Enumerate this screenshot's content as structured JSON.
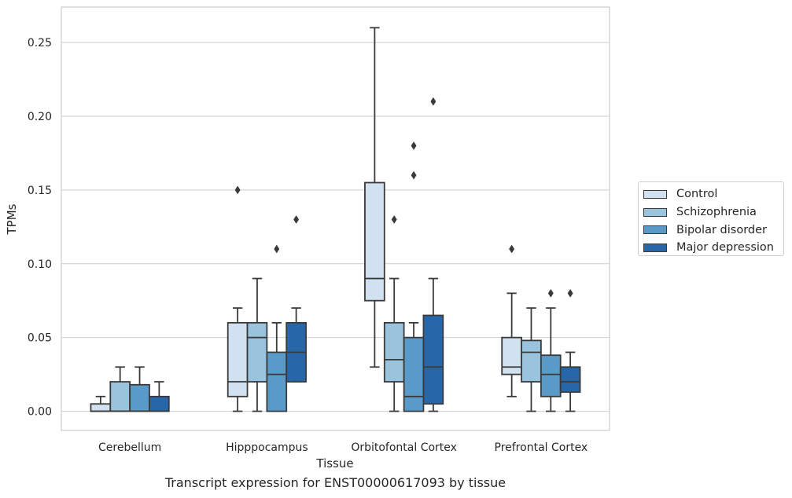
{
  "chart_data": {
    "type": "box",
    "title": "",
    "caption": "Transcript expression for ENST00000617093 by tissue",
    "xlabel": "Tissue",
    "ylabel": "TPMs",
    "ylim": [
      -0.013,
      0.274
    ],
    "yticks": [
      0.0,
      0.05,
      0.1,
      0.15,
      0.2,
      0.25
    ],
    "ytick_labels": [
      "0.00",
      "0.05",
      "0.10",
      "0.15",
      "0.20",
      "0.25"
    ],
    "grid": "horizontal",
    "legend_position": "right",
    "categories": [
      "Cerebellum",
      "Hipppocampus",
      "Orbitofontal Cortex",
      "Prefrontal Cortex"
    ],
    "series": [
      {
        "name": "Control",
        "color": "#d1e1f0",
        "boxes": [
          {
            "whislo": 0.0,
            "q1": 0.0,
            "med": 0.0,
            "q3": 0.005,
            "whishi": 0.01,
            "fliers": []
          },
          {
            "whislo": 0.0,
            "q1": 0.01,
            "med": 0.02,
            "q3": 0.06,
            "whishi": 0.07,
            "fliers": [
              0.15
            ]
          },
          {
            "whislo": 0.03,
            "q1": 0.075,
            "med": 0.09,
            "q3": 0.155,
            "whishi": 0.26,
            "fliers": []
          },
          {
            "whislo": 0.01,
            "q1": 0.025,
            "med": 0.03,
            "q3": 0.05,
            "whishi": 0.08,
            "fliers": [
              0.11
            ]
          }
        ]
      },
      {
        "name": "Schizophrenia",
        "color": "#9ac3de",
        "boxes": [
          {
            "whislo": 0.0,
            "q1": 0.0,
            "med": 0.0,
            "q3": 0.02,
            "whishi": 0.03,
            "fliers": []
          },
          {
            "whislo": 0.0,
            "q1": 0.02,
            "med": 0.05,
            "q3": 0.06,
            "whishi": 0.09,
            "fliers": []
          },
          {
            "whislo": 0.0,
            "q1": 0.02,
            "med": 0.035,
            "q3": 0.06,
            "whishi": 0.09,
            "fliers": [
              0.13
            ]
          },
          {
            "whislo": 0.0,
            "q1": 0.02,
            "med": 0.04,
            "q3": 0.048,
            "whishi": 0.07,
            "fliers": []
          }
        ]
      },
      {
        "name": "Bipolar disorder",
        "color": "#5a9ac8",
        "boxes": [
          {
            "whislo": 0.0,
            "q1": 0.0,
            "med": 0.0,
            "q3": 0.018,
            "whishi": 0.03,
            "fliers": []
          },
          {
            "whislo": 0.0,
            "q1": 0.0,
            "med": 0.025,
            "q3": 0.04,
            "whishi": 0.06,
            "fliers": [
              0.11
            ]
          },
          {
            "whislo": 0.0,
            "q1": 0.0,
            "med": 0.01,
            "q3": 0.05,
            "whishi": 0.06,
            "fliers": [
              0.16,
              0.18
            ]
          },
          {
            "whislo": 0.0,
            "q1": 0.01,
            "med": 0.025,
            "q3": 0.038,
            "whishi": 0.07,
            "fliers": [
              0.08
            ]
          }
        ]
      },
      {
        "name": "Major depression",
        "color": "#2767a8",
        "boxes": [
          {
            "whislo": 0.0,
            "q1": 0.0,
            "med": 0.0,
            "q3": 0.01,
            "whishi": 0.02,
            "fliers": []
          },
          {
            "whislo": 0.02,
            "q1": 0.02,
            "med": 0.04,
            "q3": 0.06,
            "whishi": 0.07,
            "fliers": [
              0.13
            ]
          },
          {
            "whislo": 0.0,
            "q1": 0.005,
            "med": 0.03,
            "q3": 0.065,
            "whishi": 0.09,
            "fliers": [
              0.21
            ]
          },
          {
            "whislo": 0.0,
            "q1": 0.013,
            "med": 0.02,
            "q3": 0.03,
            "whishi": 0.04,
            "fliers": [
              0.08
            ]
          }
        ]
      }
    ]
  }
}
